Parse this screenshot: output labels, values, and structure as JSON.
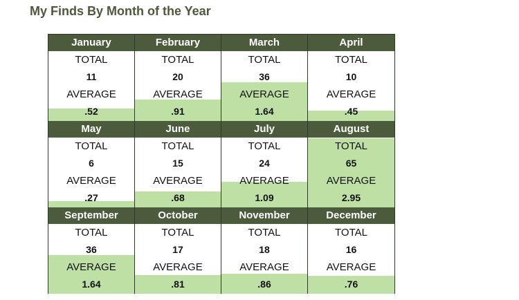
{
  "page": {
    "title": "My Finds By Month of the Year"
  },
  "colors": {
    "header_bg": "#4b5b3b",
    "highlight": "#bfe0a5",
    "title": "#4a5a3a"
  },
  "chart_data": {
    "type": "table",
    "title": "My Finds By Month of the Year",
    "row_labels": [
      "TOTAL",
      "AVERAGE"
    ],
    "months": [
      {
        "name": "January",
        "total": "11",
        "average": ".52",
        "average_value": 0.52
      },
      {
        "name": "February",
        "total": "20",
        "average": ".91",
        "average_value": 0.91
      },
      {
        "name": "March",
        "total": "36",
        "average": "1.64",
        "average_value": 1.64
      },
      {
        "name": "April",
        "total": "10",
        "average": ".45",
        "average_value": 0.45
      },
      {
        "name": "May",
        "total": "6",
        "average": ".27",
        "average_value": 0.27
      },
      {
        "name": "June",
        "total": "15",
        "average": ".68",
        "average_value": 0.68
      },
      {
        "name": "July",
        "total": "24",
        "average": "1.09",
        "average_value": 1.09
      },
      {
        "name": "August",
        "total": "65",
        "average": "2.95",
        "average_value": 2.95
      },
      {
        "name": "September",
        "total": "36",
        "average": "1.64",
        "average_value": 1.64
      },
      {
        "name": "October",
        "total": "17",
        "average": ".81",
        "average_value": 0.81
      },
      {
        "name": "November",
        "total": "18",
        "average": ".86",
        "average_value": 0.86
      },
      {
        "name": "December",
        "total": "16",
        "average": ".76",
        "average_value": 0.76
      }
    ]
  }
}
